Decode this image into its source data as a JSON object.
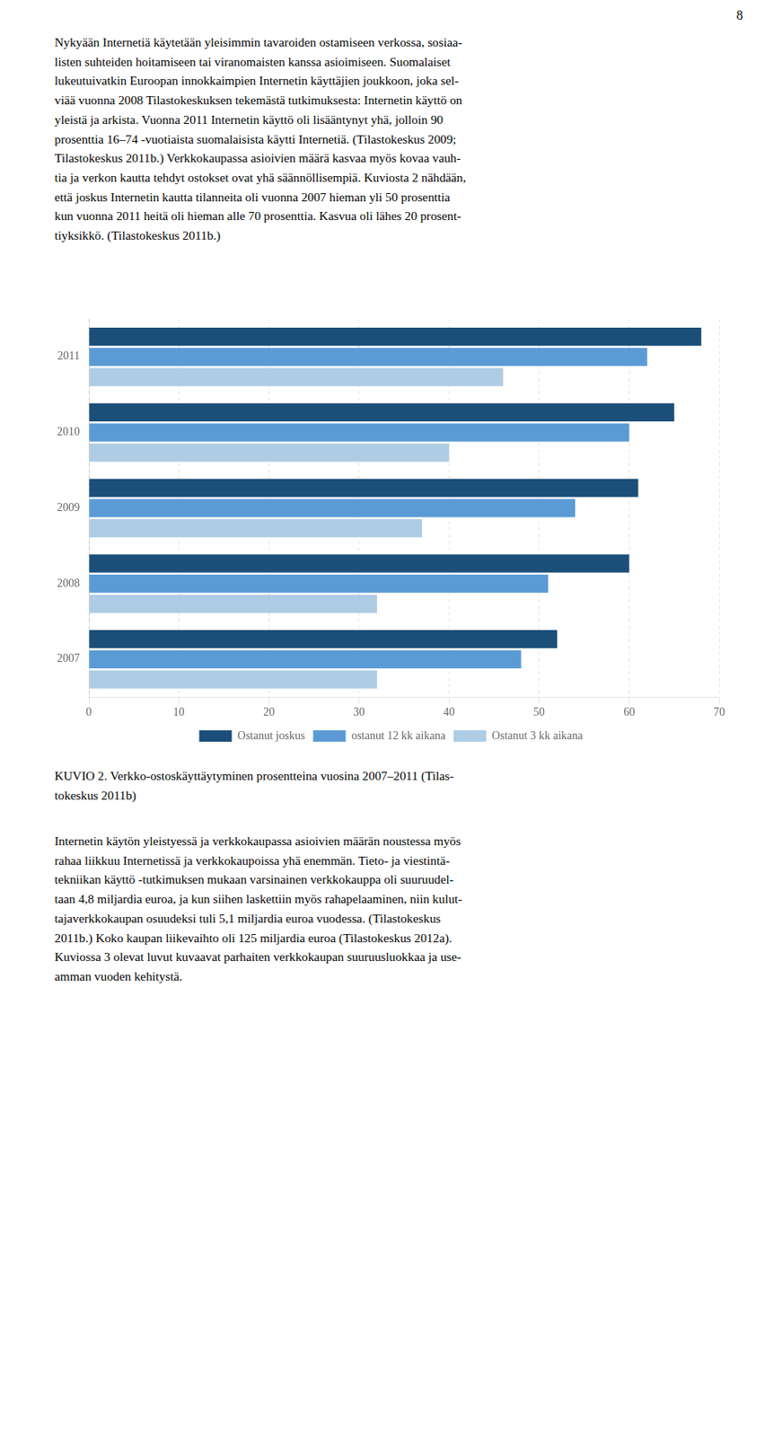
{
  "chart_data": {
    "type": "bar",
    "orientation": "horizontal",
    "title": "KUVIO 2. Verkko-ostoskäyttäytyminen prosentteina vuosina 2007–2011 (Tilas-\ntokeskus 2011b)",
    "annotations": [
      "8",
      "Nykyään Internetiä käytetään yleisimmin tavaroiden ostamiseen verkossa, sosiaa-\nlisten suhteiden hoitamiseen tai viranomaisten kanssa asioimiseen. Suomalaiset\nlukeutuivatkin Euroopan innokkaimpien Internetin käyttäjien joukkoon, joka sel-\nviää vuonna 2008 Tilastokeskuksen tekemästä tutkimuksesta: Internetin käyttö on\nyleistä ja arkista. Vuonna 2011 Internetin käyttö oli lisääntynyt yhä, jolloin 90\nprosenttia 16–74 -vuotiaista suomalaisista käytti Internetiä. (Tilastokeskus 2009;\nTilastokeskus 2011b.) Verkkokaupassa asioivien määrä kasvaa myös kovaa vauh-\ntia ja verkon kautta tehdyt ostokset ovat yhä säännöllisempiä. Kuviosta 2 nähdään,\nettä joskus Internetin kautta tilanneita oli vuonna 2007 hieman yli 50 prosenttia\nkun vuonna 2011 heitä oli hieman alle 70 prosenttia. Kasvua oli lähes 20 prosent-\ntiyksikkö. (Tilastokeskus 2011b.)",
      "Internetin käytön yleistyessä ja verkkokaupassa asioivien määrän noustessa myös\nrahaa liikkuu Internetissä ja verkkokaupoissa yhä enemmän. Tieto- ja viestintä-\ntekniikan käyttö -tutkimuksen mukaan varsinainen verkkokauppa oli suuruudel-\ntaan 4,8 miljardia euroa, ja kun siihen laskettiin myös rahapelaaminen, niin kulut-\ntajaverkkokaupan osuudeksi tuli 5,1 miljardia euroa vuodessa. (Tilastokeskus\n2011b.) Koko kaupan liikevaihto oli 125 miljardia euroa (Tilastokeskus 2012a).\nKuviossa 3 olevat luvut kuvaavat parhaiten verkkokaupan suuruusluokkaa ja use-\namman vuoden kehitystä."
    ],
    "categories": [
      "2011",
      "2010",
      "2009",
      "2008",
      "2007"
    ],
    "series": [
      {
        "name": "Ostanut joskus",
        "color": "#1b4f7a",
        "values": [
          68,
          65,
          61,
          60,
          52
        ]
      },
      {
        "name": "ostanut 12 kk aikana",
        "color": "#5b9bd5",
        "values": [
          62,
          60,
          54,
          51,
          48
        ]
      },
      {
        "name": "Ostanut 3 kk aikana",
        "color": "#aecce4",
        "values": [
          46,
          40,
          37,
          32,
          32
        ]
      }
    ],
    "xlim": [
      0,
      70
    ],
    "xticks": [
      0,
      10,
      20,
      30,
      40,
      50,
      60,
      70
    ],
    "grid": true,
    "legend": "bottom"
  }
}
